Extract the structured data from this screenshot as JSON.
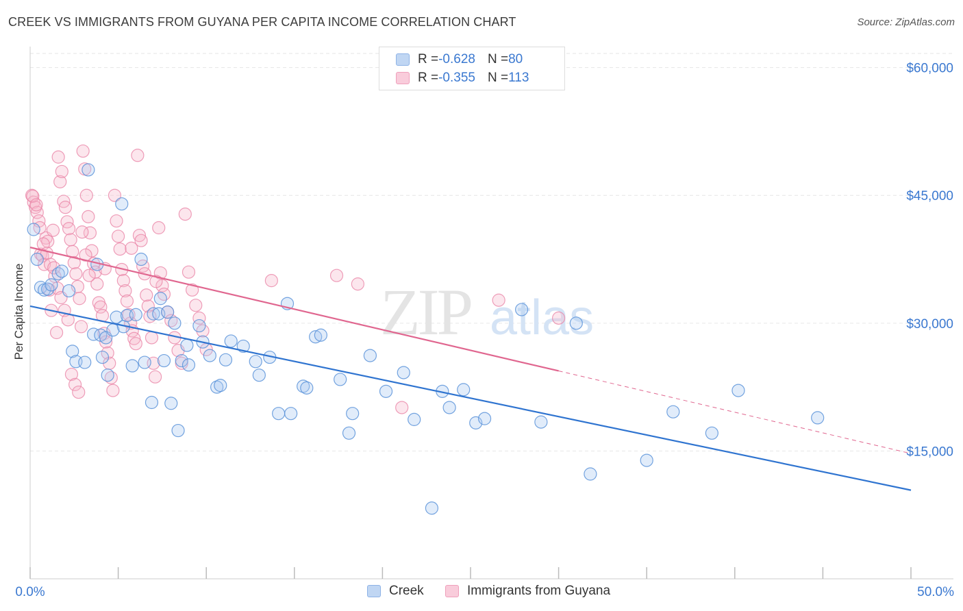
{
  "title": "CREEK VS IMMIGRANTS FROM GUYANA PER CAPITA INCOME CORRELATION CHART",
  "source": "Source: ZipAtlas.com",
  "watermark": {
    "zip": "ZIP",
    "atlas": "atlas"
  },
  "legend": {
    "rows": [
      {
        "r_label": "R = ",
        "r_value": "-0.628",
        "n_label": "N = ",
        "n_value": "80",
        "color": "#a9c8f0"
      },
      {
        "r_label": "R = ",
        "r_value": "-0.355",
        "n_label": "N = ",
        "n_value": "113",
        "color": "#f5b8cc"
      }
    ]
  },
  "bottom_legend": [
    {
      "label": "Creek",
      "color": "#a9c8f0"
    },
    {
      "label": "Immigrants from Guyana",
      "color": "#f5b8cc"
    }
  ],
  "colors": {
    "creek": "#5b93d9",
    "guyana": "#ea86a8",
    "creek_line": "#2f74d0",
    "guyana_line": "#e0668f",
    "axis_text": "#3a78d0"
  },
  "chart_data": {
    "type": "scatter",
    "title": "CREEK VS IMMIGRANTS FROM GUYANA PER CAPITA INCOME CORRELATION CHART",
    "xlabel": "",
    "ylabel": "Per Capita Income",
    "xlim": [
      0,
      50
    ],
    "ylim": [
      0,
      61500
    ],
    "x_tick_labels": [
      "0.0%",
      "50.0%"
    ],
    "y_ticks": [
      15000,
      30000,
      45000,
      60000
    ],
    "y_tick_labels": [
      "$15,000",
      "$30,000",
      "$45,000",
      "$60,000"
    ],
    "grid": true,
    "legend_position": "top-center",
    "series": [
      {
        "name": "Creek",
        "trend": {
          "x": [
            0,
            50
          ],
          "y": [
            32000,
            10400
          ]
        },
        "points": [
          [
            0.2,
            41000
          ],
          [
            0.4,
            37500
          ],
          [
            0.6,
            34200
          ],
          [
            0.8,
            33900
          ],
          [
            1.0,
            34000
          ],
          [
            1.2,
            34500
          ],
          [
            1.6,
            35800
          ],
          [
            1.8,
            36100
          ],
          [
            2.2,
            33800
          ],
          [
            2.4,
            26700
          ],
          [
            2.6,
            25500
          ],
          [
            3.1,
            25400
          ],
          [
            3.3,
            48000
          ],
          [
            3.6,
            28700
          ],
          [
            3.8,
            36900
          ],
          [
            4.0,
            28600
          ],
          [
            4.1,
            26000
          ],
          [
            4.3,
            28300
          ],
          [
            4.4,
            23900
          ],
          [
            4.7,
            29200
          ],
          [
            4.9,
            30700
          ],
          [
            5.2,
            44000
          ],
          [
            5.3,
            29600
          ],
          [
            5.5,
            30900
          ],
          [
            5.8,
            25000
          ],
          [
            6.0,
            31000
          ],
          [
            6.3,
            37500
          ],
          [
            6.5,
            25400
          ],
          [
            6.9,
            20700
          ],
          [
            7.0,
            31100
          ],
          [
            7.3,
            31100
          ],
          [
            7.4,
            32900
          ],
          [
            7.6,
            25600
          ],
          [
            7.8,
            31300
          ],
          [
            8.0,
            20600
          ],
          [
            8.2,
            30000
          ],
          [
            8.4,
            17400
          ],
          [
            8.6,
            25600
          ],
          [
            8.9,
            27400
          ],
          [
            9.0,
            25100
          ],
          [
            9.6,
            29700
          ],
          [
            9.8,
            27800
          ],
          [
            10.2,
            26200
          ],
          [
            10.6,
            22500
          ],
          [
            10.8,
            22700
          ],
          [
            11.1,
            25700
          ],
          [
            11.4,
            27900
          ],
          [
            12.1,
            27300
          ],
          [
            12.8,
            25500
          ],
          [
            13.0,
            23900
          ],
          [
            13.6,
            26000
          ],
          [
            14.1,
            19400
          ],
          [
            14.6,
            32300
          ],
          [
            14.8,
            19400
          ],
          [
            15.5,
            22600
          ],
          [
            15.7,
            22400
          ],
          [
            16.2,
            28400
          ],
          [
            16.5,
            28600
          ],
          [
            17.6,
            23400
          ],
          [
            18.1,
            17100
          ],
          [
            18.3,
            19400
          ],
          [
            19.3,
            26200
          ],
          [
            20.2,
            22000
          ],
          [
            21.2,
            24200
          ],
          [
            21.8,
            18700
          ],
          [
            22.8,
            8300
          ],
          [
            23.4,
            22000
          ],
          [
            23.8,
            20100
          ],
          [
            24.6,
            22200
          ],
          [
            25.3,
            18300
          ],
          [
            25.8,
            18800
          ],
          [
            27.9,
            31600
          ],
          [
            29.0,
            18400
          ],
          [
            31.0,
            30000
          ],
          [
            31.8,
            12300
          ],
          [
            35.0,
            13900
          ],
          [
            36.5,
            19600
          ],
          [
            38.7,
            17100
          ],
          [
            40.2,
            22100
          ],
          [
            44.7,
            18900
          ]
        ]
      },
      {
        "name": "Immigrants from Guyana",
        "trend": {
          "x": [
            0,
            30
          ],
          "y": [
            38900,
            24400
          ]
        },
        "trend_dashed": {
          "x": [
            30,
            50
          ],
          "y": [
            24400,
            14700
          ]
        },
        "points": [
          [
            0.1,
            45000
          ],
          [
            0.2,
            44200
          ],
          [
            0.3,
            43600
          ],
          [
            0.4,
            43000
          ],
          [
            0.5,
            42000
          ],
          [
            0.6,
            38100
          ],
          [
            0.7,
            37900
          ],
          [
            0.8,
            36900
          ],
          [
            0.9,
            40000
          ],
          [
            1.0,
            39600
          ],
          [
            1.1,
            33900
          ],
          [
            1.2,
            31500
          ],
          [
            1.3,
            40900
          ],
          [
            1.4,
            35500
          ],
          [
            1.5,
            28900
          ],
          [
            1.6,
            49500
          ],
          [
            1.7,
            46600
          ],
          [
            1.8,
            47800
          ],
          [
            1.9,
            44300
          ],
          [
            2.0,
            43600
          ],
          [
            2.1,
            41900
          ],
          [
            2.2,
            41100
          ],
          [
            2.3,
            39800
          ],
          [
            2.4,
            38400
          ],
          [
            2.5,
            37100
          ],
          [
            2.6,
            35800
          ],
          [
            2.7,
            34300
          ],
          [
            2.8,
            32900
          ],
          [
            2.9,
            29600
          ],
          [
            3.0,
            50200
          ],
          [
            3.1,
            48100
          ],
          [
            3.2,
            45000
          ],
          [
            3.3,
            42500
          ],
          [
            3.4,
            40600
          ],
          [
            3.5,
            38500
          ],
          [
            3.6,
            37000
          ],
          [
            3.7,
            36000
          ],
          [
            3.8,
            34600
          ],
          [
            3.9,
            32400
          ],
          [
            4.0,
            31900
          ],
          [
            4.1,
            30900
          ],
          [
            4.2,
            28800
          ],
          [
            4.3,
            27800
          ],
          [
            4.4,
            26500
          ],
          [
            4.5,
            25300
          ],
          [
            4.6,
            23600
          ],
          [
            4.7,
            22100
          ],
          [
            4.8,
            45000
          ],
          [
            4.9,
            42000
          ],
          [
            5.0,
            40200
          ],
          [
            5.1,
            38700
          ],
          [
            5.2,
            36300
          ],
          [
            5.3,
            35000
          ],
          [
            5.4,
            33800
          ],
          [
            5.5,
            32600
          ],
          [
            5.6,
            31000
          ],
          [
            5.7,
            30000
          ],
          [
            5.8,
            29100
          ],
          [
            5.9,
            28200
          ],
          [
            6.0,
            27600
          ],
          [
            6.1,
            49700
          ],
          [
            6.2,
            40300
          ],
          [
            6.3,
            39700
          ],
          [
            6.4,
            36700
          ],
          [
            6.5,
            35800
          ],
          [
            6.6,
            33300
          ],
          [
            6.7,
            32000
          ],
          [
            6.8,
            30800
          ],
          [
            6.9,
            28300
          ],
          [
            7.0,
            25300
          ],
          [
            7.1,
            23700
          ],
          [
            7.3,
            41200
          ],
          [
            7.4,
            35900
          ],
          [
            7.5,
            34400
          ],
          [
            7.6,
            33400
          ],
          [
            7.8,
            31300
          ],
          [
            8.0,
            30300
          ],
          [
            8.2,
            28300
          ],
          [
            8.4,
            26800
          ],
          [
            8.6,
            25300
          ],
          [
            8.8,
            42800
          ],
          [
            9.0,
            36000
          ],
          [
            9.2,
            33900
          ],
          [
            9.4,
            32100
          ],
          [
            9.6,
            30600
          ],
          [
            9.8,
            29100
          ],
          [
            10.0,
            26900
          ],
          [
            0.15,
            44900
          ],
          [
            0.35,
            43900
          ],
          [
            0.55,
            41200
          ],
          [
            0.75,
            39300
          ],
          [
            0.95,
            38200
          ],
          [
            1.15,
            36900
          ],
          [
            1.35,
            36500
          ],
          [
            1.55,
            34100
          ],
          [
            1.75,
            33000
          ],
          [
            1.95,
            31500
          ],
          [
            2.15,
            30400
          ],
          [
            2.35,
            24000
          ],
          [
            2.55,
            22800
          ],
          [
            2.75,
            21900
          ],
          [
            2.95,
            40700
          ],
          [
            3.15,
            38000
          ],
          [
            3.35,
            35600
          ],
          [
            13.7,
            35000
          ],
          [
            17.4,
            35600
          ],
          [
            18.6,
            34600
          ],
          [
            21.1,
            20100
          ],
          [
            26.6,
            32700
          ],
          [
            30.0,
            30600
          ],
          [
            4.25,
            36400
          ],
          [
            5.75,
            38800
          ],
          [
            7.15,
            34900
          ]
        ]
      }
    ]
  }
}
